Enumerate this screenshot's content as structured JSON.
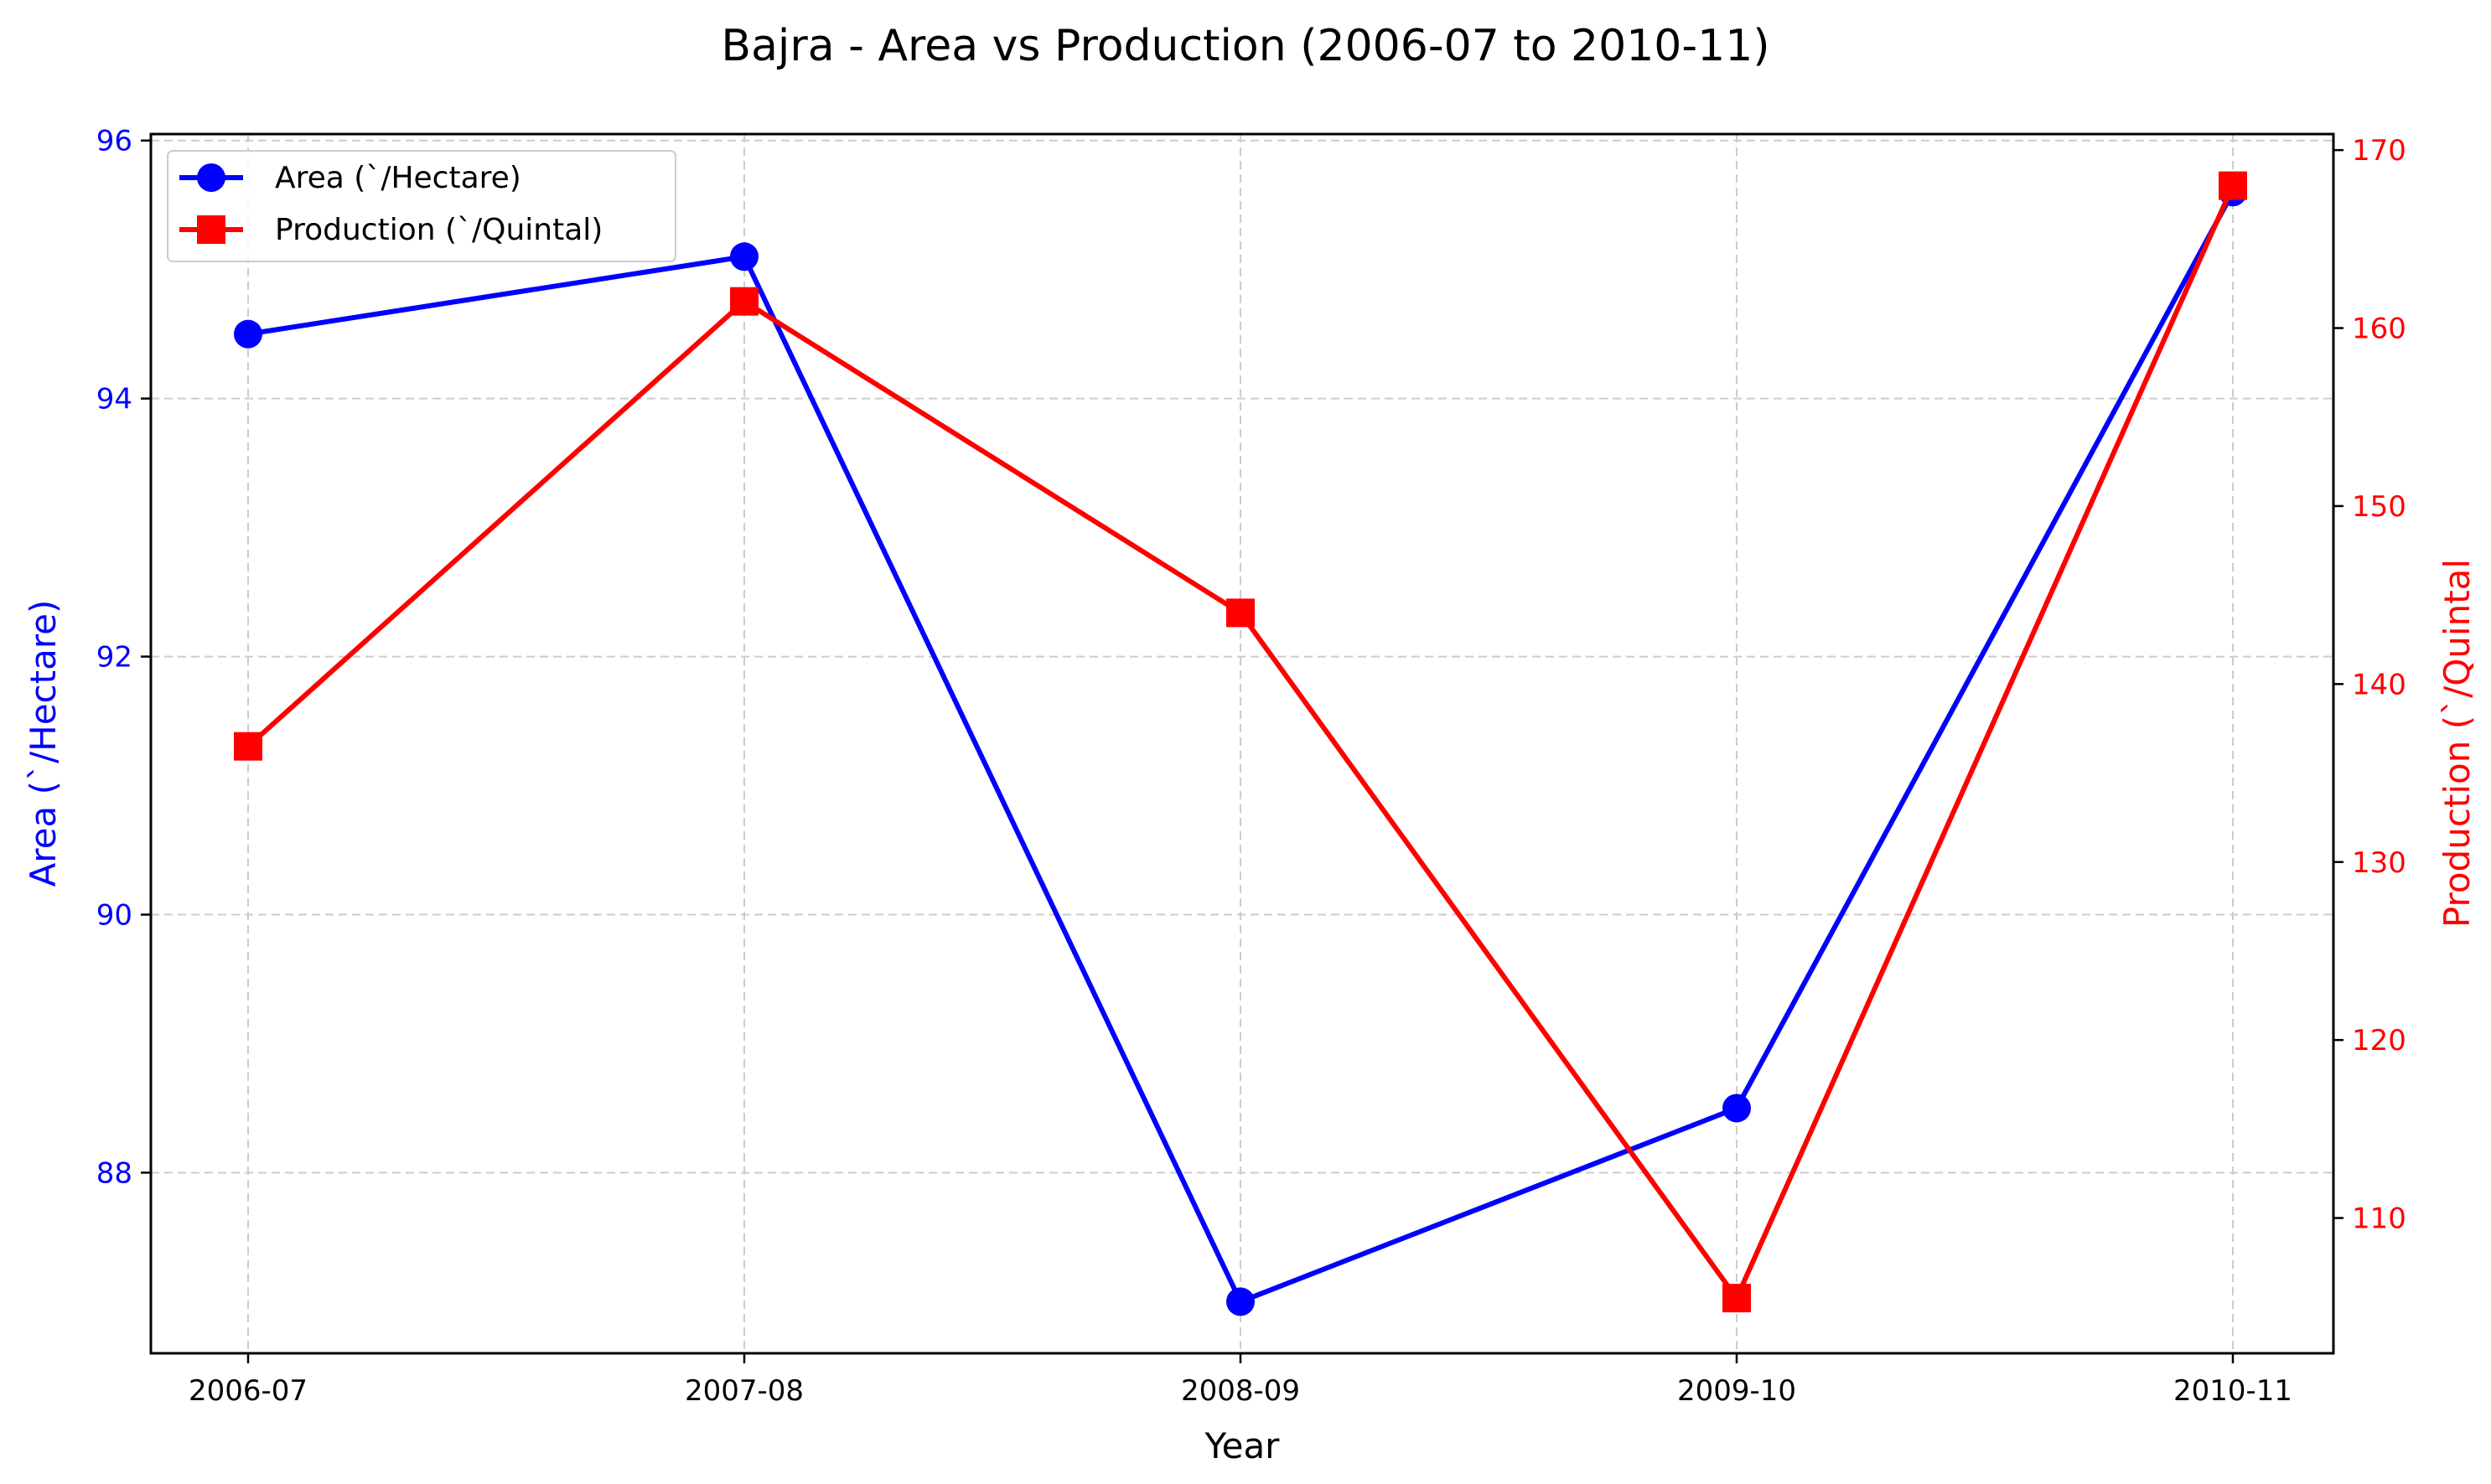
{
  "chart_data": {
    "type": "line",
    "title": "Bajra - Area vs Production (2006-07 to 2010-11)",
    "xlabel": "Year",
    "categories": [
      "2006-07",
      "2007-08",
      "2008-09",
      "2009-10",
      "2010-11"
    ],
    "left_axis": {
      "label": "Area (`/Hectare)",
      "color": "#0000ff",
      "ylim": [
        86.6,
        96.05
      ],
      "ticks": [
        88,
        90,
        92,
        94,
        96
      ]
    },
    "right_axis": {
      "label": "Production (`/Quintal",
      "color": "#ff0000",
      "ylim": [
        102.4,
        170.9
      ],
      "ticks": [
        110,
        120,
        130,
        140,
        150,
        160,
        170
      ]
    },
    "series": [
      {
        "name": "Area (`/Hectare)",
        "axis": "left",
        "color": "#0000ff",
        "marker": "circle",
        "values": [
          94.5,
          95.1,
          87.0,
          88.5,
          95.6
        ]
      },
      {
        "name": "Production (`/Quintal)",
        "axis": "right",
        "color": "#ff0000",
        "marker": "square",
        "values": [
          136.5,
          161.5,
          144.0,
          105.5,
          168.0
        ]
      }
    ],
    "grid": true,
    "legend_position": "top-left"
  }
}
